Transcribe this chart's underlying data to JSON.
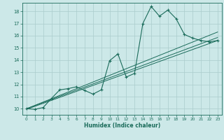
{
  "bg_color": "#cce8e8",
  "grid_color": "#aacccc",
  "line_color": "#1a6b5a",
  "xlabel": "Humidex (Indice chaleur)",
  "xlim": [
    -0.5,
    23.5
  ],
  "ylim": [
    9.5,
    18.7
  ],
  "yticks": [
    10,
    11,
    12,
    13,
    14,
    15,
    16,
    17,
    18
  ],
  "xticks": [
    0,
    1,
    2,
    3,
    4,
    5,
    6,
    7,
    8,
    9,
    10,
    11,
    12,
    13,
    14,
    15,
    16,
    17,
    18,
    19,
    20,
    21,
    22,
    23
  ],
  "series1_x": [
    0,
    1,
    2,
    3,
    4,
    5,
    6,
    7,
    8,
    9,
    10,
    11,
    12,
    13,
    14,
    15,
    16,
    17,
    18,
    19,
    20,
    21,
    22,
    23
  ],
  "series1_y": [
    10.0,
    9.95,
    10.1,
    10.85,
    11.55,
    11.65,
    11.8,
    11.5,
    11.2,
    11.55,
    13.95,
    14.5,
    12.6,
    12.9,
    17.0,
    18.4,
    17.6,
    18.1,
    17.4,
    16.1,
    15.8,
    15.6,
    15.5,
    15.6
  ],
  "series2_x": [
    0,
    23
  ],
  "series2_y": [
    10.0,
    15.85
  ],
  "series3_x": [
    0,
    23
  ],
  "series3_y": [
    10.0,
    16.3
  ],
  "series4_x": [
    0,
    23
  ],
  "series4_y": [
    9.95,
    15.6
  ]
}
